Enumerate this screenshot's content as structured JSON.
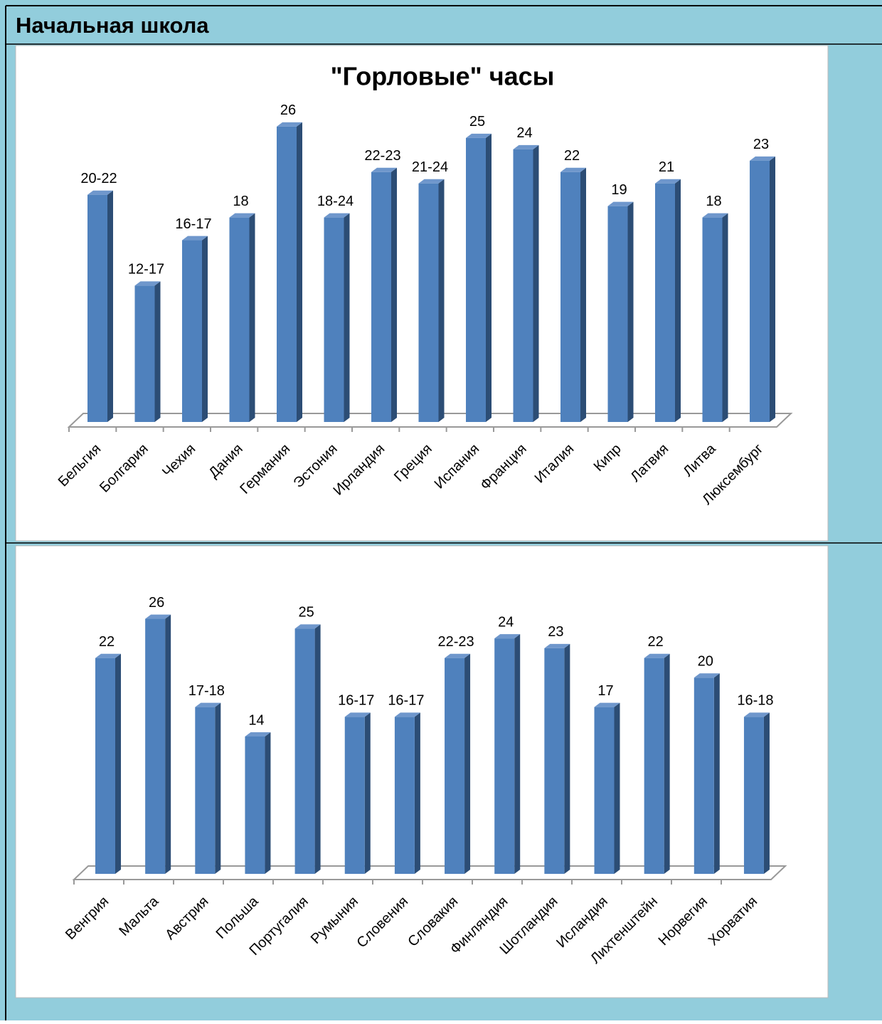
{
  "header": {
    "title": "Начальная школа"
  },
  "chart_data": [
    {
      "type": "bar",
      "title": "\"Горловые\" часы",
      "categories": [
        "Бельгия",
        "Болгария",
        "Чехия",
        "Дания",
        "Германия",
        "Эстония",
        "Ирландия",
        "Греция",
        "Испания",
        "Франция",
        "Италия",
        "Кипр",
        "Латвия",
        "Литва",
        "Люксембург"
      ],
      "values": [
        20,
        12,
        16,
        18,
        26,
        18,
        22,
        21,
        25,
        24,
        22,
        19,
        21,
        18,
        23
      ],
      "value_labels": [
        "20-22",
        "12-17",
        "16-17",
        "18",
        "26",
        "18-24",
        "22-23",
        "21-24",
        "25",
        "24",
        "22",
        "19",
        "21",
        "18",
        "23"
      ],
      "color": "#4f81bd",
      "ylim": [
        0,
        28
      ]
    },
    {
      "type": "bar",
      "categories": [
        "Венгрия",
        "Мальта",
        "Австрия",
        "Польша",
        "Португалия",
        "Румыния",
        "Словения",
        "Словакия",
        "Финляндия",
        "Шотландия",
        "Исландия",
        "Лихтенштейн",
        "Норвегия",
        "Хорватия"
      ],
      "values": [
        22,
        26,
        17,
        14,
        25,
        16,
        16,
        22,
        24,
        23,
        17,
        22,
        20,
        16
      ],
      "value_labels": [
        "22",
        "26",
        "17-18",
        "14",
        "25",
        "16-17",
        "16-17",
        "22-23",
        "24",
        "23",
        "17",
        "22",
        "20",
        "16-18"
      ],
      "color": "#4f81bd",
      "ylim": [
        0,
        28
      ]
    }
  ]
}
